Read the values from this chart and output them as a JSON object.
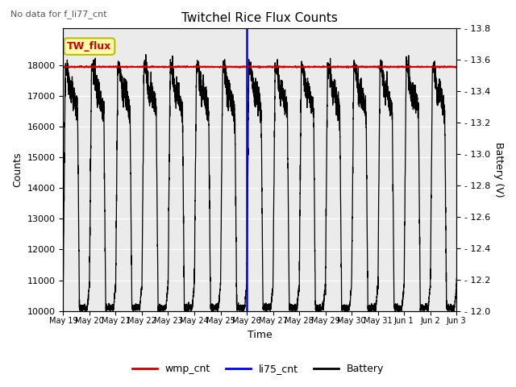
{
  "title": "Twitchel Rice Flux Counts",
  "no_data_label": "No data for f_li77_cnt",
  "tw_flux_label": "TW_flux",
  "xlabel": "Time",
  "ylabel_left": "Counts",
  "ylabel_right": "Battery (V)",
  "ylim_left": [
    10000,
    19200
  ],
  "ylim_right": [
    12.0,
    13.8
  ],
  "yticks_left": [
    10000,
    11000,
    12000,
    13000,
    14000,
    15000,
    16000,
    17000,
    18000
  ],
  "yticks_right": [
    12.0,
    12.2,
    12.4,
    12.6,
    12.8,
    13.0,
    13.2,
    13.4,
    13.6,
    13.8
  ],
  "xtick_labels": [
    "May 19",
    "May 20",
    "May 21",
    "May 22",
    "May 23",
    "May 24",
    "May 25",
    "May 26",
    "May 27",
    "May 28",
    "May 29",
    "May 30",
    "May 31",
    "Jun 1",
    "Jun 2",
    "Jun 3"
  ],
  "wmp_cnt_value": 17950,
  "li75_cnt_day": 7.0,
  "background_color": "#ebebeb",
  "wmp_color": "#cc0000",
  "li75_color": "#0000ff",
  "battery_color": "#000000",
  "tw_flux_box_color": "#ffffaa",
  "tw_flux_box_edge": "#bbbb00",
  "legend_entries": [
    "wmp_cnt",
    "li75_cnt",
    "Battery"
  ]
}
